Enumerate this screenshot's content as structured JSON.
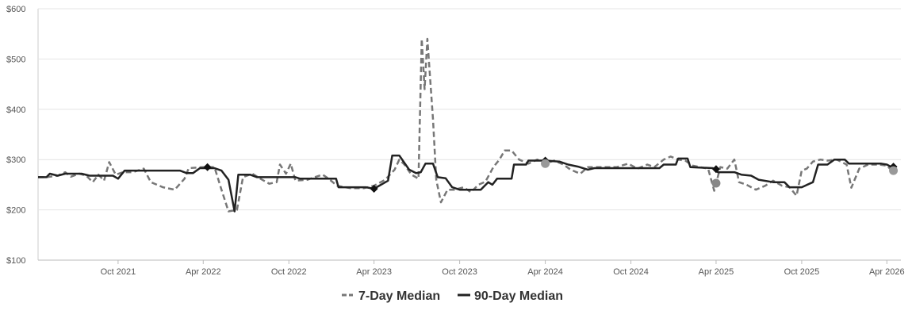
{
  "chart_data": {
    "type": "line",
    "title": "",
    "xlabel": "",
    "ylabel": "",
    "ylim": [
      100,
      600
    ],
    "xlim": [
      "2021-04-13",
      "2026-05-01"
    ],
    "grid": true,
    "legend_position": "bottom",
    "y_ticks": [
      {
        "value": 100,
        "label": "$100"
      },
      {
        "value": 200,
        "label": "$200"
      },
      {
        "value": 300,
        "label": "$300"
      },
      {
        "value": 400,
        "label": "$400"
      },
      {
        "value": 500,
        "label": "$500"
      },
      {
        "value": 600,
        "label": "$600"
      }
    ],
    "x_ticks": [
      {
        "value": "2021-10-01",
        "label": "Oct 2021"
      },
      {
        "value": "2022-04-01",
        "label": "Apr 2022"
      },
      {
        "value": "2022-10-01",
        "label": "Oct 2022"
      },
      {
        "value": "2023-04-01",
        "label": "Apr 2023"
      },
      {
        "value": "2023-10-01",
        "label": "Oct 2023"
      },
      {
        "value": "2024-04-01",
        "label": "Apr 2024"
      },
      {
        "value": "2024-10-01",
        "label": "Oct 2024"
      },
      {
        "value": "2025-04-01",
        "label": "Apr 2025"
      },
      {
        "value": "2025-10-01",
        "label": "Oct 2025"
      },
      {
        "value": "2026-04-01",
        "label": "Apr 2026"
      }
    ],
    "series": [
      {
        "name": "7-Day Median",
        "style": "dashed",
        "color": "#777777",
        "points": [
          [
            "2021-04-13",
            265
          ],
          [
            "2021-05-01",
            265
          ],
          [
            "2021-05-25",
            268
          ],
          [
            "2021-06-10",
            275
          ],
          [
            "2021-06-22",
            266
          ],
          [
            "2021-07-10",
            272
          ],
          [
            "2021-07-25",
            268
          ],
          [
            "2021-08-08",
            255
          ],
          [
            "2021-08-20",
            270
          ],
          [
            "2021-09-01",
            258
          ],
          [
            "2021-09-12",
            295
          ],
          [
            "2021-09-26",
            270
          ],
          [
            "2021-10-12",
            275
          ],
          [
            "2021-11-01",
            275
          ],
          [
            "2021-11-25",
            282
          ],
          [
            "2021-12-10",
            255
          ],
          [
            "2022-01-05",
            245
          ],
          [
            "2022-01-30",
            240
          ],
          [
            "2022-02-20",
            262
          ],
          [
            "2022-03-01",
            283
          ],
          [
            "2022-04-01",
            285
          ],
          [
            "2022-04-25",
            285
          ],
          [
            "2022-05-10",
            240
          ],
          [
            "2022-05-25",
            197
          ],
          [
            "2022-06-12",
            200
          ],
          [
            "2022-06-25",
            265
          ],
          [
            "2022-07-15",
            272
          ],
          [
            "2022-08-01",
            262
          ],
          [
            "2022-08-20",
            252
          ],
          [
            "2022-09-05",
            255
          ],
          [
            "2022-09-12",
            290
          ],
          [
            "2022-09-25",
            272
          ],
          [
            "2022-10-05",
            292
          ],
          [
            "2022-10-15",
            258
          ],
          [
            "2022-11-10",
            260
          ],
          [
            "2022-11-25",
            265
          ],
          [
            "2022-12-12",
            270
          ],
          [
            "2022-12-25",
            262
          ],
          [
            "2023-01-12",
            248
          ],
          [
            "2023-02-10",
            243
          ],
          [
            "2023-03-10",
            243
          ],
          [
            "2023-04-01",
            248
          ],
          [
            "2023-04-25",
            260
          ],
          [
            "2023-05-15",
            280
          ],
          [
            "2023-05-25",
            300
          ],
          [
            "2023-06-05",
            290
          ],
          [
            "2023-06-20",
            270
          ],
          [
            "2023-07-05",
            262
          ],
          [
            "2023-07-12",
            540
          ],
          [
            "2023-07-18",
            440
          ],
          [
            "2023-07-24",
            540
          ],
          [
            "2023-08-05",
            380
          ],
          [
            "2023-08-12",
            260
          ],
          [
            "2023-08-22",
            215
          ],
          [
            "2023-09-05",
            240
          ],
          [
            "2023-09-20",
            240
          ],
          [
            "2023-10-10",
            245
          ],
          [
            "2023-10-25",
            235
          ],
          [
            "2023-11-10",
            250
          ],
          [
            "2023-11-25",
            256
          ],
          [
            "2023-12-12",
            285
          ],
          [
            "2023-12-25",
            300
          ],
          [
            "2024-01-05",
            318
          ],
          [
            "2024-01-20",
            318
          ],
          [
            "2024-02-05",
            300
          ],
          [
            "2024-02-25",
            292
          ],
          [
            "2024-03-15",
            300
          ],
          [
            "2024-04-01",
            292
          ],
          [
            "2024-04-20",
            298
          ],
          [
            "2024-05-10",
            290
          ],
          [
            "2024-05-25",
            280
          ],
          [
            "2024-06-15",
            272
          ],
          [
            "2024-07-01",
            285
          ],
          [
            "2024-08-01",
            285
          ],
          [
            "2024-09-01",
            285
          ],
          [
            "2024-09-25",
            292
          ],
          [
            "2024-10-15",
            282
          ],
          [
            "2024-11-05",
            290
          ],
          [
            "2024-11-20",
            285
          ],
          [
            "2024-12-10",
            300
          ],
          [
            "2024-12-25",
            306
          ],
          [
            "2025-01-10",
            300
          ],
          [
            "2025-01-25",
            298
          ],
          [
            "2025-02-10",
            288
          ],
          [
            "2025-02-25",
            285
          ],
          [
            "2025-03-15",
            282
          ],
          [
            "2025-03-28",
            238
          ],
          [
            "2025-04-10",
            285
          ],
          [
            "2025-04-25",
            282
          ],
          [
            "2025-05-10",
            300
          ],
          [
            "2025-05-20",
            255
          ],
          [
            "2025-06-05",
            250
          ],
          [
            "2025-06-25",
            240
          ],
          [
            "2025-07-15",
            248
          ],
          [
            "2025-08-01",
            258
          ],
          [
            "2025-08-20",
            248
          ],
          [
            "2025-09-05",
            245
          ],
          [
            "2025-09-20",
            228
          ],
          [
            "2025-10-01",
            278
          ],
          [
            "2025-10-12",
            282
          ],
          [
            "2025-10-25",
            296
          ],
          [
            "2025-11-10",
            300
          ],
          [
            "2025-11-25",
            298
          ],
          [
            "2025-12-15",
            300
          ],
          [
            "2026-01-05",
            290
          ],
          [
            "2026-01-15",
            244
          ],
          [
            "2026-02-01",
            282
          ],
          [
            "2026-02-20",
            290
          ],
          [
            "2026-03-15",
            290
          ],
          [
            "2026-04-01",
            288
          ],
          [
            "2026-04-12",
            278
          ]
        ]
      },
      {
        "name": "90-Day Median",
        "style": "solid",
        "color": "#222222",
        "points": [
          [
            "2021-04-13",
            265
          ],
          [
            "2021-05-01",
            265
          ],
          [
            "2021-05-08",
            272
          ],
          [
            "2021-05-25",
            268
          ],
          [
            "2021-06-10",
            272
          ],
          [
            "2021-07-15",
            272
          ],
          [
            "2021-08-01",
            268
          ],
          [
            "2021-09-20",
            268
          ],
          [
            "2021-10-01",
            262
          ],
          [
            "2021-10-15",
            278
          ],
          [
            "2022-01-15",
            278
          ],
          [
            "2022-02-10",
            278
          ],
          [
            "2022-02-25",
            273
          ],
          [
            "2022-03-10",
            273
          ],
          [
            "2022-03-25",
            283
          ],
          [
            "2022-04-25",
            283
          ],
          [
            "2022-05-10",
            278
          ],
          [
            "2022-05-25",
            260
          ],
          [
            "2022-06-07",
            197
          ],
          [
            "2022-06-15",
            270
          ],
          [
            "2022-07-10",
            270
          ],
          [
            "2022-07-25",
            265
          ],
          [
            "2022-10-15",
            265
          ],
          [
            "2022-10-25",
            262
          ],
          [
            "2023-01-10",
            262
          ],
          [
            "2023-01-15",
            245
          ],
          [
            "2023-03-15",
            245
          ],
          [
            "2023-04-01",
            242
          ],
          [
            "2023-05-01",
            258
          ],
          [
            "2023-05-10",
            308
          ],
          [
            "2023-05-25",
            308
          ],
          [
            "2023-06-15",
            280
          ],
          [
            "2023-06-30",
            273
          ],
          [
            "2023-07-10",
            275
          ],
          [
            "2023-07-20",
            292
          ],
          [
            "2023-08-05",
            292
          ],
          [
            "2023-08-15",
            265
          ],
          [
            "2023-09-01",
            263
          ],
          [
            "2023-09-15",
            245
          ],
          [
            "2023-10-01",
            240
          ],
          [
            "2023-11-15",
            240
          ],
          [
            "2023-12-01",
            255
          ],
          [
            "2023-12-10",
            250
          ],
          [
            "2023-12-20",
            262
          ],
          [
            "2024-01-20",
            262
          ],
          [
            "2024-01-25",
            290
          ],
          [
            "2024-02-20",
            290
          ],
          [
            "2024-02-25",
            298
          ],
          [
            "2024-04-01",
            298
          ],
          [
            "2024-05-01",
            296
          ],
          [
            "2024-05-20",
            290
          ],
          [
            "2024-06-10",
            286
          ],
          [
            "2024-07-01",
            280
          ],
          [
            "2024-07-15",
            283
          ],
          [
            "2024-12-01",
            283
          ],
          [
            "2024-12-10",
            290
          ],
          [
            "2025-01-05",
            290
          ],
          [
            "2025-01-10",
            302
          ],
          [
            "2025-01-30",
            302
          ],
          [
            "2025-02-05",
            285
          ],
          [
            "2025-03-25",
            283
          ],
          [
            "2025-04-05",
            275
          ],
          [
            "2025-05-10",
            275
          ],
          [
            "2025-05-25",
            270
          ],
          [
            "2025-06-15",
            268
          ],
          [
            "2025-07-01",
            260
          ],
          [
            "2025-08-01",
            255
          ],
          [
            "2025-08-25",
            255
          ],
          [
            "2025-09-05",
            245
          ],
          [
            "2025-10-01",
            245
          ],
          [
            "2025-10-25",
            255
          ],
          [
            "2025-11-05",
            290
          ],
          [
            "2025-11-25",
            290
          ],
          [
            "2025-12-10",
            300
          ],
          [
            "2026-01-01",
            300
          ],
          [
            "2026-01-10",
            292
          ],
          [
            "2026-03-20",
            292
          ],
          [
            "2026-04-01",
            290
          ],
          [
            "2026-04-15",
            283
          ]
        ]
      }
    ],
    "markers": [
      {
        "date": "2022-04-10",
        "value": 285,
        "shape": "diamond",
        "color": "#111111"
      },
      {
        "date": "2023-04-01",
        "value": 242,
        "shape": "diamond",
        "color": "#111111"
      },
      {
        "date": "2024-04-01",
        "value": 298,
        "shape": "diamond",
        "color": "#111111"
      },
      {
        "date": "2024-04-01",
        "value": 292,
        "shape": "circle",
        "color": "#999999"
      },
      {
        "date": "2025-04-01",
        "value": 281,
        "shape": "diamond",
        "color": "#111111"
      },
      {
        "date": "2025-04-01",
        "value": 253,
        "shape": "circle",
        "color": "#888888"
      },
      {
        "date": "2026-04-15",
        "value": 286,
        "shape": "diamond",
        "color": "#111111"
      },
      {
        "date": "2026-04-15",
        "value": 278,
        "shape": "circle",
        "color": "#999999"
      }
    ]
  }
}
